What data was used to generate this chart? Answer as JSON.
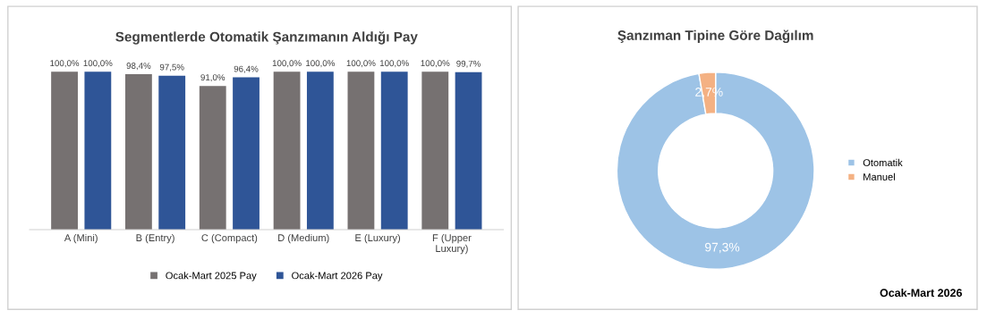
{
  "chart_data": [
    {
      "type": "bar",
      "title": "Segmentlerde Otomatik Şanzımanın Aldığı Pay",
      "categories": [
        "A (Mini)",
        "B (Entry)",
        "C (Compact)",
        "D (Medium)",
        "E (Luxury)",
        "F (Upper\nLuxury)"
      ],
      "series": [
        {
          "name": "Ocak-Mart 2025 Pay",
          "color": "#767171",
          "values": [
            100.0,
            98.4,
            91.0,
            100.0,
            100.0,
            100.0
          ],
          "value_labels": [
            "100,0%",
            "98,4%",
            "91,0%",
            "100,0%",
            "100,0%",
            "100,0%"
          ]
        },
        {
          "name": "Ocak-Mart 2026 Pay",
          "color": "#2f5597",
          "values": [
            100.0,
            97.5,
            96.4,
            100.0,
            100.0,
            99.7
          ],
          "value_labels": [
            "100,0%",
            "97,5%",
            "96,4%",
            "100,0%",
            "100,0%",
            "99,7%"
          ]
        }
      ],
      "tick_labels": "x",
      "legend": "bottom",
      "grid": false
    },
    {
      "type": "donut",
      "title": "Şanzıman Tipine Göre Dağılım",
      "categories": [
        "Otomatik",
        "Manuel"
      ],
      "values": [
        97.3,
        2.7
      ],
      "colors": [
        "#9dc3e6",
        "#f4b183"
      ],
      "value_labels": [
        "97,3%",
        "2,7%"
      ],
      "legend": "right",
      "annotations": [
        "Ocak-Mart 2026"
      ]
    }
  ]
}
